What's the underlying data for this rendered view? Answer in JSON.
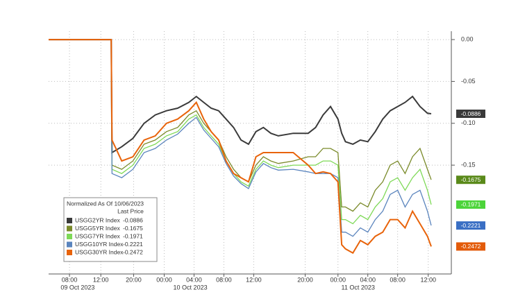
{
  "chart_data": {
    "type": "line",
    "legend_title": "Normalized As Of 10/06/2023",
    "legend_subtitle": "Last Price",
    "legend_position": "lower-left",
    "grid": true,
    "x": [
      5.2,
      13.6,
      13.7,
      15,
      16.5,
      18,
      19.5,
      21,
      22.5,
      24,
      25,
      26,
      27,
      28,
      29,
      30,
      31,
      32,
      33,
      34,
      35,
      36,
      38,
      40,
      41,
      42,
      43,
      44,
      44.5,
      45,
      46,
      47,
      48,
      49,
      50,
      51,
      52,
      53,
      54,
      55,
      56,
      56.5
    ],
    "xlim": [
      5.2,
      59.2
    ],
    "xticks": [
      {
        "value": 8,
        "label": "08:00"
      },
      {
        "value": 12.2,
        "label": "12:00"
      },
      {
        "value": 16.6,
        "label": "20:00"
      },
      {
        "value": 20.7,
        "label": "00:00"
      },
      {
        "value": 24.7,
        "label": "04:00"
      },
      {
        "value": 28.7,
        "label": "08:00"
      },
      {
        "value": 32.7,
        "label": "12:00"
      },
      {
        "value": 39.6,
        "label": "20:00"
      },
      {
        "value": 44.0,
        "label": "00:00"
      },
      {
        "value": 48.0,
        "label": "04:00"
      },
      {
        "value": 52.0,
        "label": "08:00"
      },
      {
        "value": 56.1,
        "label": "12:00"
      }
    ],
    "date_labels": [
      {
        "value": 9.1,
        "label": "09 Oct 2023"
      },
      {
        "value": 24.2,
        "label": "10 Oct 2023"
      },
      {
        "value": 46.7,
        "label": "11 Oct 2023"
      }
    ],
    "ylim": [
      -0.28,
      0.01
    ],
    "yticks": [
      {
        "value": 0,
        "label": "0.00"
      },
      {
        "value": -0.05,
        "label": "-0.05"
      },
      {
        "value": -0.1,
        "label": "-0.10"
      },
      {
        "value": -0.15,
        "label": "-0.15"
      }
    ],
    "series": [
      {
        "name": "USGG2YR Index",
        "color": "#3a3a3a",
        "tag_color": "#3a3a3a",
        "values": [
          0,
          0,
          -0.135,
          -0.128,
          -0.118,
          -0.1,
          -0.09,
          -0.085,
          -0.082,
          -0.075,
          -0.068,
          -0.075,
          -0.082,
          -0.085,
          -0.095,
          -0.105,
          -0.12,
          -0.125,
          -0.11,
          -0.105,
          -0.112,
          -0.115,
          -0.112,
          -0.112,
          -0.105,
          -0.09,
          -0.08,
          -0.095,
          -0.112,
          -0.122,
          -0.125,
          -0.12,
          -0.122,
          -0.11,
          -0.095,
          -0.085,
          -0.08,
          -0.075,
          -0.068,
          -0.08,
          -0.088,
          -0.0886
        ]
      },
      {
        "name": "USGG5YR Index",
        "color": "#7a8a2a",
        "tag_color": "#5a8a1a",
        "values": [
          0,
          0,
          -0.15,
          -0.155,
          -0.145,
          -0.125,
          -0.12,
          -0.11,
          -0.105,
          -0.09,
          -0.085,
          -0.1,
          -0.11,
          -0.12,
          -0.14,
          -0.155,
          -0.165,
          -0.17,
          -0.15,
          -0.14,
          -0.145,
          -0.148,
          -0.145,
          -0.14,
          -0.14,
          -0.13,
          -0.13,
          -0.135,
          -0.2,
          -0.2,
          -0.205,
          -0.195,
          -0.2,
          -0.18,
          -0.17,
          -0.15,
          -0.145,
          -0.16,
          -0.14,
          -0.13,
          -0.155,
          -0.1675
        ]
      },
      {
        "name": "USGG7YR Index",
        "color": "#7ed957",
        "tag_color": "#4cd43a",
        "values": [
          0,
          0,
          -0.155,
          -0.16,
          -0.15,
          -0.13,
          -0.125,
          -0.115,
          -0.11,
          -0.095,
          -0.09,
          -0.105,
          -0.115,
          -0.125,
          -0.145,
          -0.16,
          -0.17,
          -0.175,
          -0.155,
          -0.145,
          -0.15,
          -0.153,
          -0.15,
          -0.15,
          -0.15,
          -0.145,
          -0.145,
          -0.15,
          -0.215,
          -0.215,
          -0.22,
          -0.21,
          -0.215,
          -0.2,
          -0.19,
          -0.17,
          -0.165,
          -0.18,
          -0.165,
          -0.155,
          -0.18,
          -0.1971
        ]
      },
      {
        "name": "USGG10YR Index",
        "color": "#5a84bd",
        "tag_color": "#3a6fc4",
        "values": [
          0,
          0,
          -0.16,
          -0.165,
          -0.155,
          -0.135,
          -0.13,
          -0.12,
          -0.113,
          -0.1,
          -0.093,
          -0.108,
          -0.118,
          -0.128,
          -0.148,
          -0.163,
          -0.172,
          -0.178,
          -0.158,
          -0.148,
          -0.153,
          -0.156,
          -0.155,
          -0.158,
          -0.16,
          -0.16,
          -0.16,
          -0.165,
          -0.23,
          -0.23,
          -0.235,
          -0.225,
          -0.23,
          -0.215,
          -0.205,
          -0.185,
          -0.18,
          -0.2,
          -0.185,
          -0.18,
          -0.205,
          -0.2221
        ]
      },
      {
        "name": "USGG30YR Index",
        "color": "#e8630a",
        "tag_color": "#e35b0a",
        "values": [
          0,
          0,
          -0.12,
          -0.145,
          -0.14,
          -0.12,
          -0.115,
          -0.1,
          -0.095,
          -0.085,
          -0.075,
          -0.095,
          -0.11,
          -0.12,
          -0.145,
          -0.16,
          -0.165,
          -0.17,
          -0.14,
          -0.135,
          -0.135,
          -0.135,
          -0.135,
          -0.15,
          -0.16,
          -0.158,
          -0.16,
          -0.17,
          -0.245,
          -0.25,
          -0.255,
          -0.24,
          -0.245,
          -0.235,
          -0.23,
          -0.215,
          -0.215,
          -0.225,
          -0.205,
          -0.22,
          -0.235,
          -0.2472
        ]
      }
    ]
  }
}
